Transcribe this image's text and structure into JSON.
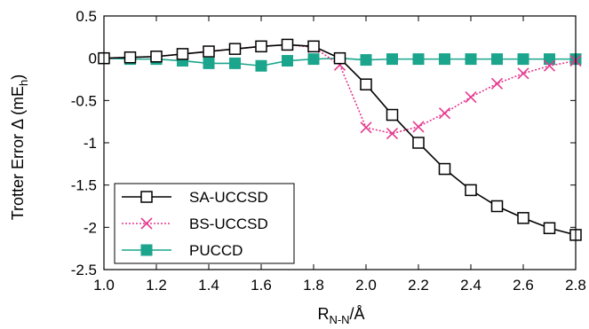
{
  "chart_data": {
    "type": "line",
    "xlabel": {
      "main": "R",
      "sub": "N-N",
      "suffix": "/Å"
    },
    "ylabel": {
      "prefix": "Trotter Error Δ (mE",
      "sub": "h",
      "suffix": ")"
    },
    "xlim": [
      1.0,
      2.8
    ],
    "ylim": [
      -2.5,
      0.5
    ],
    "xticks": [
      1.0,
      1.2,
      1.4,
      1.6,
      1.8,
      2.0,
      2.2,
      2.4,
      2.6,
      2.8
    ],
    "xtick_labels": [
      "1.0",
      "1.2",
      "1.4",
      "1.6",
      "1.8",
      "2.0",
      "2.2",
      "2.4",
      "2.6",
      "2.8"
    ],
    "yticks": [
      0.5,
      0,
      -0.5,
      -1,
      -1.5,
      -2,
      -2.5
    ],
    "ytick_labels": [
      "0.5",
      "0",
      "-0.5",
      "-1",
      "-1.5",
      "-2",
      "-2.5"
    ],
    "grid": false,
    "legend_position": "bottom-left",
    "x": [
      1.0,
      1.1,
      1.2,
      1.3,
      1.4,
      1.5,
      1.6,
      1.7,
      1.8,
      1.9,
      2.0,
      2.1,
      2.2,
      2.3,
      2.4,
      2.5,
      2.6,
      2.7,
      2.8
    ],
    "series": [
      {
        "name": "SA-UCCSD",
        "color": "#000000",
        "marker": "open-square",
        "line": "solid",
        "values": [
          0.0,
          0.01,
          0.02,
          0.05,
          0.08,
          0.11,
          0.14,
          0.16,
          0.14,
          0.0,
          -0.31,
          -0.67,
          -1.0,
          -1.31,
          -1.56,
          -1.75,
          -1.89,
          -2.01,
          -2.09
        ]
      },
      {
        "name": "BS-UCCSD",
        "color": "#e5388e",
        "marker": "cross",
        "line": "dotted",
        "values": [
          0.0,
          0.01,
          0.02,
          0.05,
          0.08,
          0.11,
          0.14,
          0.16,
          0.13,
          -0.08,
          -0.82,
          -0.89,
          -0.81,
          -0.65,
          -0.46,
          -0.3,
          -0.18,
          -0.09,
          -0.03
        ]
      },
      {
        "name": "PUCCD",
        "color": "#1aa58c",
        "marker": "filled-square",
        "line": "solid",
        "values": [
          0.0,
          -0.01,
          -0.01,
          -0.03,
          -0.06,
          -0.06,
          -0.09,
          -0.03,
          -0.01,
          0.0,
          -0.02,
          -0.01,
          -0.01,
          -0.01,
          -0.01,
          -0.01,
          -0.01,
          -0.01,
          -0.01
        ]
      }
    ]
  }
}
